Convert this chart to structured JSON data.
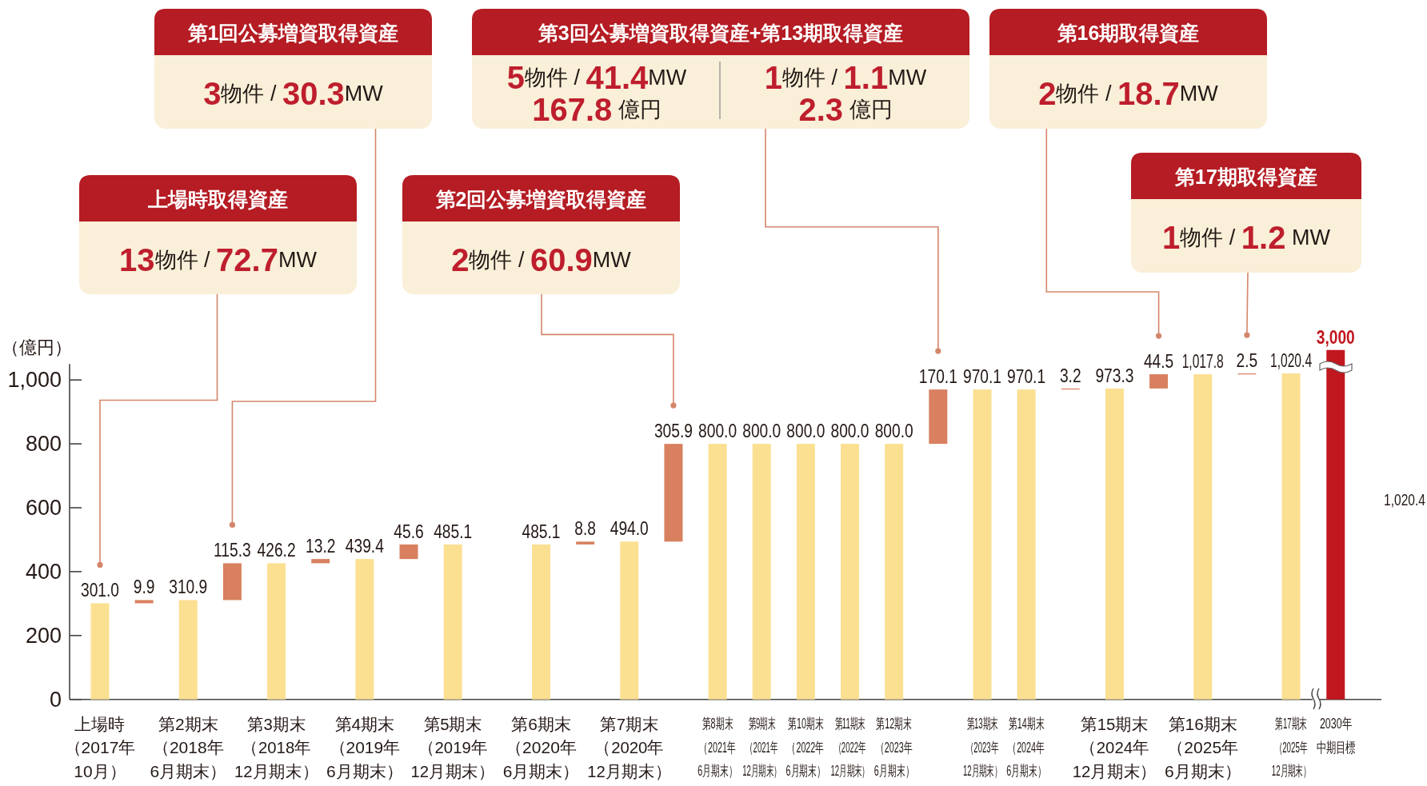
{
  "chart_data": [
    {
      "type": "bar",
      "ylabel": "（億円）",
      "categories": [
        "上場時（2017年10月）",
        null,
        "第2期末（2018年6月期末）",
        null,
        "第3期末（2018年12月期末）",
        null,
        "第4期末（2019年6月期末）",
        null,
        "第5期末（2019年12月期末）",
        null,
        "第6期末（2020年6月期末）",
        null,
        "第7期末（2020年12月期末）",
        null,
        "第8期末（2021年6月期末）",
        "第9期末（2021年12月期末）",
        "第10期末（2022年6月期末）",
        "第11期末（2022年12月期末）",
        "第12期末（2023年6月期末）",
        null,
        "第13期末（2023年12月期末）",
        "第14期末（2024年6月期末）",
        null,
        "第15期末（2024年12月期末）",
        null,
        "第16期末（2025年6月期末）",
        null,
        "第17期末（2025年12月期末）"
      ],
      "values": [
        301.0,
        9.9,
        310.9,
        115.3,
        426.2,
        13.2,
        439.4,
        45.6,
        485.1,
        null,
        485.1,
        8.8,
        494.0,
        305.9,
        800.0,
        800.0,
        800.0,
        800.0,
        800.0,
        170.1,
        970.1,
        970.1,
        3.2,
        973.3,
        44.5,
        1017.8,
        2.5,
        1020.4
      ],
      "base": [
        0,
        301.0,
        0,
        310.9,
        0,
        426.2,
        0,
        439.4,
        0,
        null,
        0,
        485.1,
        0,
        494.0,
        0,
        0,
        0,
        0,
        0,
        800.0,
        0,
        0,
        970.1,
        0,
        973.3,
        0,
        1017.8,
        0
      ],
      "colors": [
        "#fbe092",
        "#d8805f",
        "#fbe092",
        "#d8805f",
        "#fbe092",
        "#d8805f",
        "#fbe092",
        "#d8805f",
        "#fbe092",
        null,
        "#fbe092",
        "#d8805f",
        "#fbe092",
        "#d8805f",
        "#fbe092",
        "#fbe092",
        "#fbe092",
        "#fbe092",
        "#fbe092",
        "#d8805f",
        "#fbe092",
        "#fbe092",
        "#d8805f",
        "#fbe092",
        "#d8805f",
        "#fbe092",
        "#d8805f",
        "#fbe092"
      ],
      "value_labels": [
        "301.0",
        "9.9",
        "310.9",
        "115.3",
        "426.2",
        "13.2",
        "439.4",
        "45.6",
        "485.1",
        null,
        "485.1",
        "8.8",
        "494.0",
        "305.9",
        "800.0",
        "800.0",
        "800.0",
        "800.0",
        "800.0",
        "170.1",
        "970.1",
        "970.1",
        "3.2",
        "973.3",
        "44.5",
        "1,017.8",
        "2.5",
        "1,020.4"
      ],
      "ylim": [
        0,
        1050
      ],
      "yticks": [
        0,
        200,
        400,
        600,
        800,
        {
          "value": 1000,
          "label": "1,000"
        }
      ],
      "annotations": [
        "上場時取得資産",
        "**13**物件 / **72.7**MW",
        "第1回公募増資取得資産",
        "**3**物件 / **30.3**MW",
        "第2回公募増資取得資産",
        "**2**物件 / **60.9**MW",
        "第3回公募増資取得資産+第13期取得資産",
        "**5**物件 / **41.4**MW\n**167.8** 億円",
        "**1**物件 / **1.1**MW\n**2.3** 億円",
        "第16期取得資産",
        "**2**物件 / **18.7**MW",
        "第17期取得資産",
        "**1**物件 / **1.2** MW",
        "1,020.4"
      ]
    },
    {
      "type": "bar",
      "categories": [
        "2030年中期目標"
      ],
      "values": [
        3000
      ],
      "ylim": [
        0,
        3000
      ],
      "value_labels": [
        "3,000"
      ],
      "color": "#c1171f"
    }
  ]
}
